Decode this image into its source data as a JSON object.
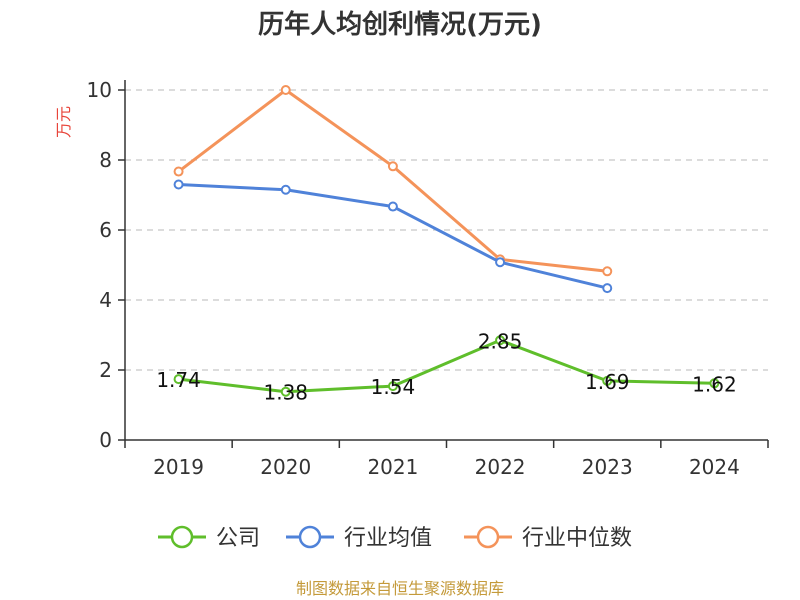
{
  "chart_data": {
    "type": "line",
    "title": "历年人均创利情况(万元)",
    "ylabel": "万元",
    "xlabel": "",
    "ylim": [
      0,
      10
    ],
    "yticks": [
      "0",
      "2",
      "4",
      "6",
      "8",
      "10"
    ],
    "categories": [
      "2019",
      "2020",
      "2021",
      "2022",
      "2023",
      "2024"
    ],
    "grid": true,
    "legend_position": "bottom",
    "series": [
      {
        "name": "公司",
        "color": "#5fbe2b",
        "values": [
          1.74,
          1.38,
          1.54,
          2.85,
          1.69,
          1.62
        ],
        "labels": [
          "1.74",
          "1.38",
          "1.54",
          "2.85",
          "1.69",
          "1.62"
        ],
        "show_labels": true
      },
      {
        "name": "行业均值",
        "color": "#4f82d9",
        "values": [
          7.3,
          7.15,
          6.67,
          5.08,
          4.34,
          null
        ],
        "show_labels": false
      },
      {
        "name": "行业中位数",
        "color": "#f4935a",
        "values": [
          7.67,
          10.0,
          7.82,
          5.16,
          4.82,
          null
        ],
        "show_labels": false
      }
    ],
    "source": "制图数据来自恒生聚源数据库"
  }
}
